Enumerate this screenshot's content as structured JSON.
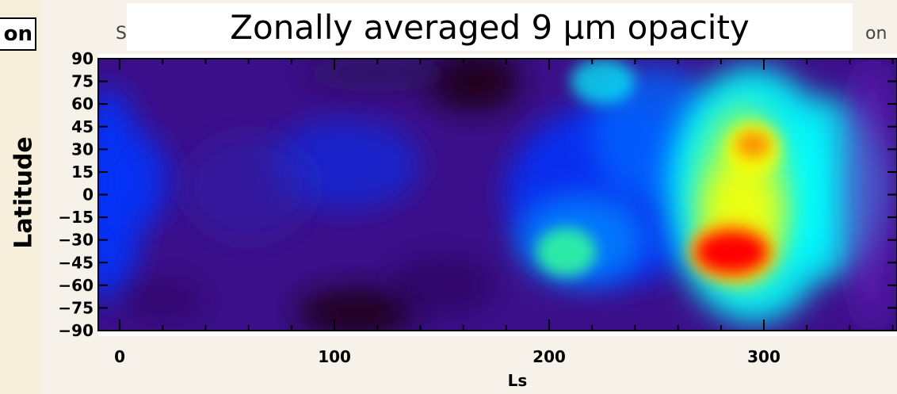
{
  "page": {
    "title": "Zonally averaged 9 µm opacity",
    "corner_fragment": "on",
    "left_title_fragment": "S",
    "right_title_fragment": "on"
  },
  "chart_data": {
    "type": "heatmap",
    "title": "Zonally averaged 9 µm opacity",
    "xlabel": "Ls",
    "ylabel": "Latitude",
    "xlim": [
      -10,
      362
    ],
    "ylim": [
      -90,
      90
    ],
    "x_ticks": [
      0,
      100,
      200,
      300
    ],
    "x_tick_labels": [
      "0",
      "100",
      "200",
      "300"
    ],
    "y_ticks": [
      90,
      75,
      60,
      45,
      30,
      15,
      0,
      -15,
      -30,
      -45,
      -60,
      -75,
      -90
    ],
    "y_tick_labels": [
      "90",
      "75",
      "60",
      "45",
      "30",
      "15",
      "0",
      "−15",
      "−30",
      "−45",
      "−60",
      "−75",
      "−90"
    ],
    "colormap": "rainbow",
    "colors": {
      "low": "#1a0016",
      "mid_low": "#3b0f8a",
      "mid": "#0033ff",
      "mid_high": "#00ffff",
      "high": "#ffff00",
      "max": "#ff0000"
    },
    "features": [
      {
        "name": "background",
        "ls": null,
        "lat": null,
        "level": 0.18
      },
      {
        "name": "dark-min-north",
        "ls": 165,
        "lat": 75,
        "level": 0.0
      },
      {
        "name": "dark-min-south",
        "ls": 110,
        "lat": -80,
        "level": 0.0
      },
      {
        "name": "max-south",
        "ls": 285,
        "lat": -38,
        "level": 1.0
      },
      {
        "name": "max-north",
        "ls": 295,
        "lat": 33,
        "level": 0.85
      },
      {
        "name": "green-patch",
        "ls": 208,
        "lat": -38,
        "level": 0.55
      }
    ]
  }
}
